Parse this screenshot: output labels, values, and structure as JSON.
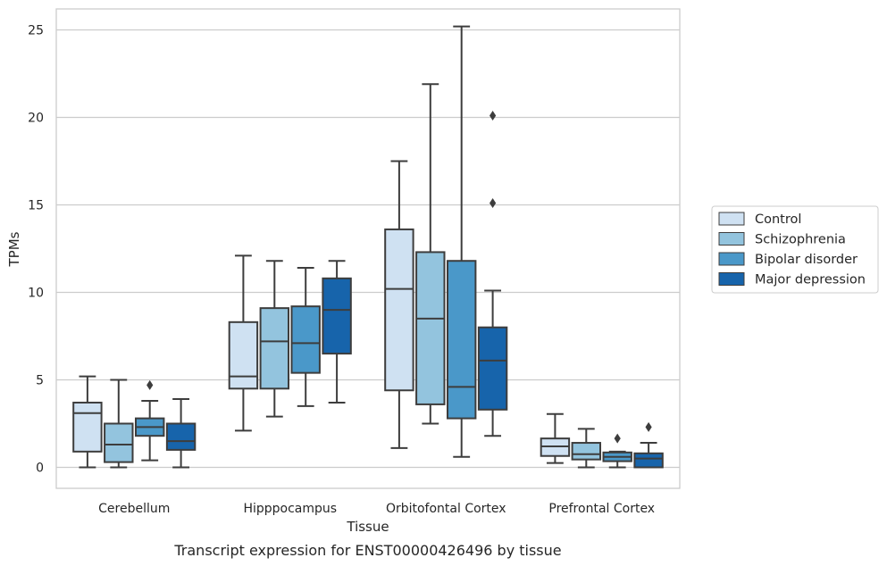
{
  "chart_data": {
    "type": "box",
    "xlabel": "Tissue",
    "ylabel": "TPMs",
    "caption": "Transcript expression for ENST00000426496 by tissue",
    "ylim": [
      -1.2,
      26.2
    ],
    "yticks": [
      0,
      5,
      10,
      15,
      20,
      25
    ],
    "grid": "horizontal",
    "legend_position": "right",
    "categories": [
      "Cerebellum",
      "Hipppocampus",
      "Orbitofontal Cortex",
      "Prefrontal Cortex"
    ],
    "series": [
      {
        "name": "Control",
        "color": "#cfe1f2",
        "boxes": [
          {
            "whislo": 0.0,
            "q1": 0.9,
            "med": 3.1,
            "q3": 3.7,
            "whishi": 5.2,
            "fliers": []
          },
          {
            "whislo": 2.1,
            "q1": 4.5,
            "med": 5.2,
            "q3": 8.3,
            "whishi": 12.1,
            "fliers": []
          },
          {
            "whislo": 1.1,
            "q1": 4.4,
            "med": 10.2,
            "q3": 13.6,
            "whishi": 17.5,
            "fliers": []
          },
          {
            "whislo": 0.25,
            "q1": 0.65,
            "med": 1.2,
            "q3": 1.65,
            "whishi": 3.05,
            "fliers": []
          }
        ]
      },
      {
        "name": "Schizophrenia",
        "color": "#93c4de",
        "boxes": [
          {
            "whislo": 0.0,
            "q1": 0.3,
            "med": 1.3,
            "q3": 2.5,
            "whishi": 5.0,
            "fliers": []
          },
          {
            "whislo": 2.9,
            "q1": 4.5,
            "med": 7.2,
            "q3": 9.1,
            "whishi": 11.8,
            "fliers": []
          },
          {
            "whislo": 2.5,
            "q1": 3.6,
            "med": 8.5,
            "q3": 12.3,
            "whishi": 21.9,
            "fliers": []
          },
          {
            "whislo": 0.0,
            "q1": 0.45,
            "med": 0.75,
            "q3": 1.4,
            "whishi": 2.2,
            "fliers": []
          }
        ]
      },
      {
        "name": "Bipolar disorder",
        "color": "#4a98c9",
        "boxes": [
          {
            "whislo": 0.4,
            "q1": 1.8,
            "med": 2.3,
            "q3": 2.8,
            "whishi": 3.8,
            "fliers": [
              4.7
            ]
          },
          {
            "whislo": 3.5,
            "q1": 5.4,
            "med": 7.1,
            "q3": 9.2,
            "whishi": 11.4,
            "fliers": []
          },
          {
            "whislo": 0.6,
            "q1": 2.8,
            "med": 4.6,
            "q3": 11.8,
            "whishi": 25.2,
            "fliers": []
          },
          {
            "whislo": 0.0,
            "q1": 0.35,
            "med": 0.6,
            "q3": 0.85,
            "whishi": 0.9,
            "fliers": [
              1.65
            ]
          }
        ]
      },
      {
        "name": "Major depression",
        "color": "#1764ab",
        "boxes": [
          {
            "whislo": 0.0,
            "q1": 1.0,
            "med": 1.5,
            "q3": 2.5,
            "whishi": 3.9,
            "fliers": []
          },
          {
            "whislo": 3.7,
            "q1": 6.5,
            "med": 9.0,
            "q3": 10.8,
            "whishi": 11.8,
            "fliers": []
          },
          {
            "whislo": 1.8,
            "q1": 3.3,
            "med": 6.1,
            "q3": 8.0,
            "whishi": 10.1,
            "fliers": [
              15.1,
              20.1
            ]
          },
          {
            "whislo": 0.0,
            "q1": 0.0,
            "med": 0.5,
            "q3": 0.8,
            "whishi": 1.4,
            "fliers": [
              2.3
            ]
          }
        ]
      }
    ]
  }
}
